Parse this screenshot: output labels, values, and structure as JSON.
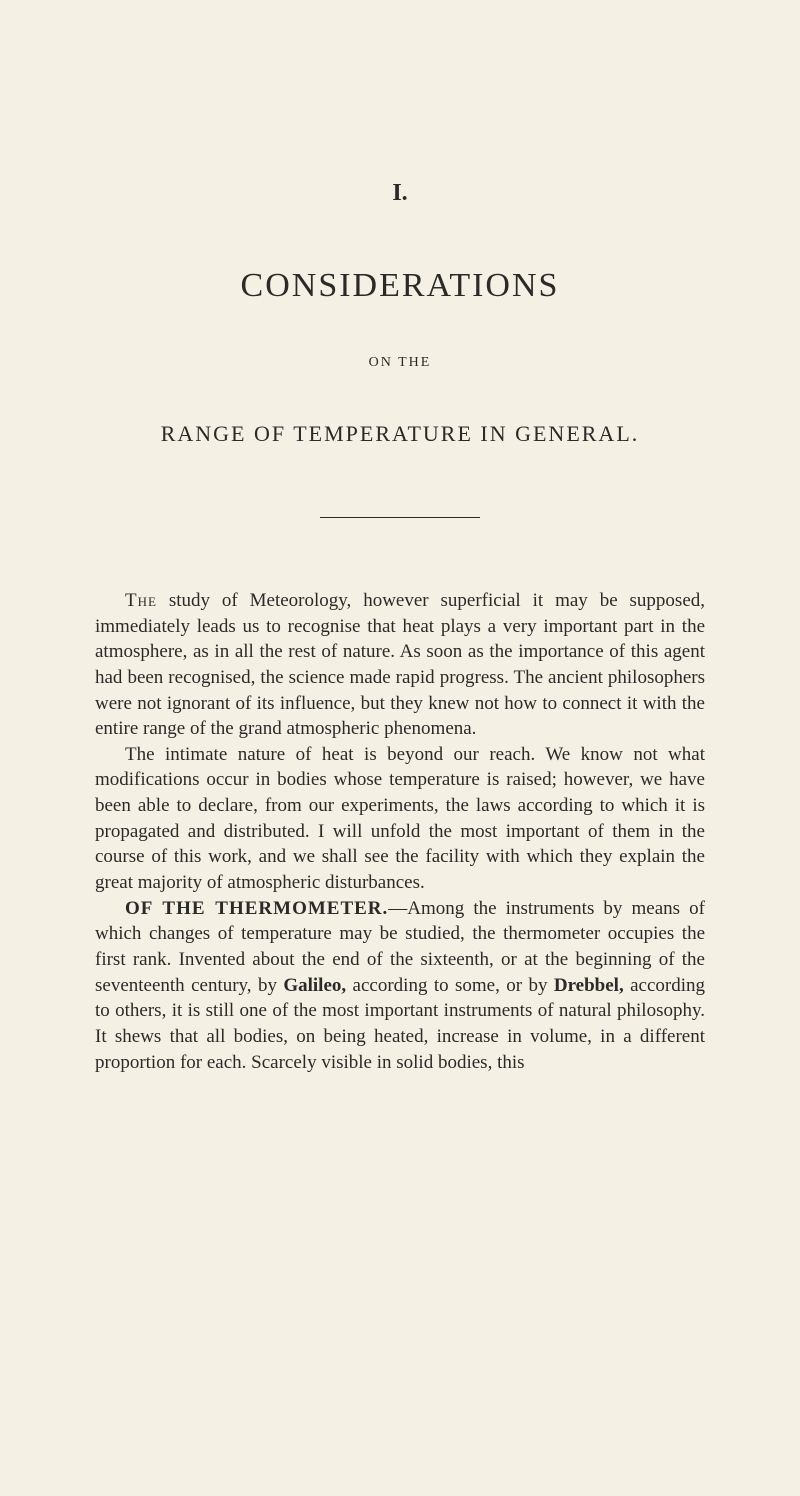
{
  "page": {
    "background_color": "#f5f0e4",
    "text_color": "#2a2a28",
    "font_family": "Georgia, Times New Roman, serif"
  },
  "chapter_number": "I.",
  "main_title": "CONSIDERATIONS",
  "on_the": "ON THE",
  "subtitle": "RANGE OF TEMPERATURE IN GENERAL.",
  "paragraphs": {
    "p1_lead": "The",
    "p1_rest": " study of Meteorology, however superficial it may be supposed, immediately leads us to recognise that heat plays a very important part in the atmosphere, as in all the rest of nature. As soon as the importance of this agent had been recognised, the science made rapid progress. The ancient philosophers were not ignorant of its influence, but they knew not how to connect it with the entire range of the grand atmospheric phenomena.",
    "p2": "The intimate nature of heat is beyond our reach. We know not what modifications occur in bodies whose temperature is raised; however, we have been able to declare, from our experiments, the laws according to which it is propagated and distributed. I will unfold the most important of them in the course of this work, and we shall see the facility with which they explain the great majority of atmospheric disturbances.",
    "p3_heading": "OF THE THERMOMETER.",
    "p3_rest1": "—Among the instruments by means of which changes of temperature may be studied, the thermometer occupies the first rank. Invented about the end of the sixteenth, or at the beginning of the seventeenth century, by ",
    "p3_author1": "Galileo,",
    "p3_rest2": " according to some, or by ",
    "p3_author2": "Drebbel,",
    "p3_rest3": " according to others, it is still one of the most important instruments of natural philosophy. It shews that all bodies, on being heated, increase in volume, in a different proportion for each. Scarcely visible in solid bodies, this"
  },
  "typography": {
    "chapter_number_fontsize": 24,
    "main_title_fontsize": 34,
    "on_the_fontsize": 14,
    "subtitle_fontsize": 22,
    "body_fontsize": 19,
    "body_lineheight": 1.35
  }
}
